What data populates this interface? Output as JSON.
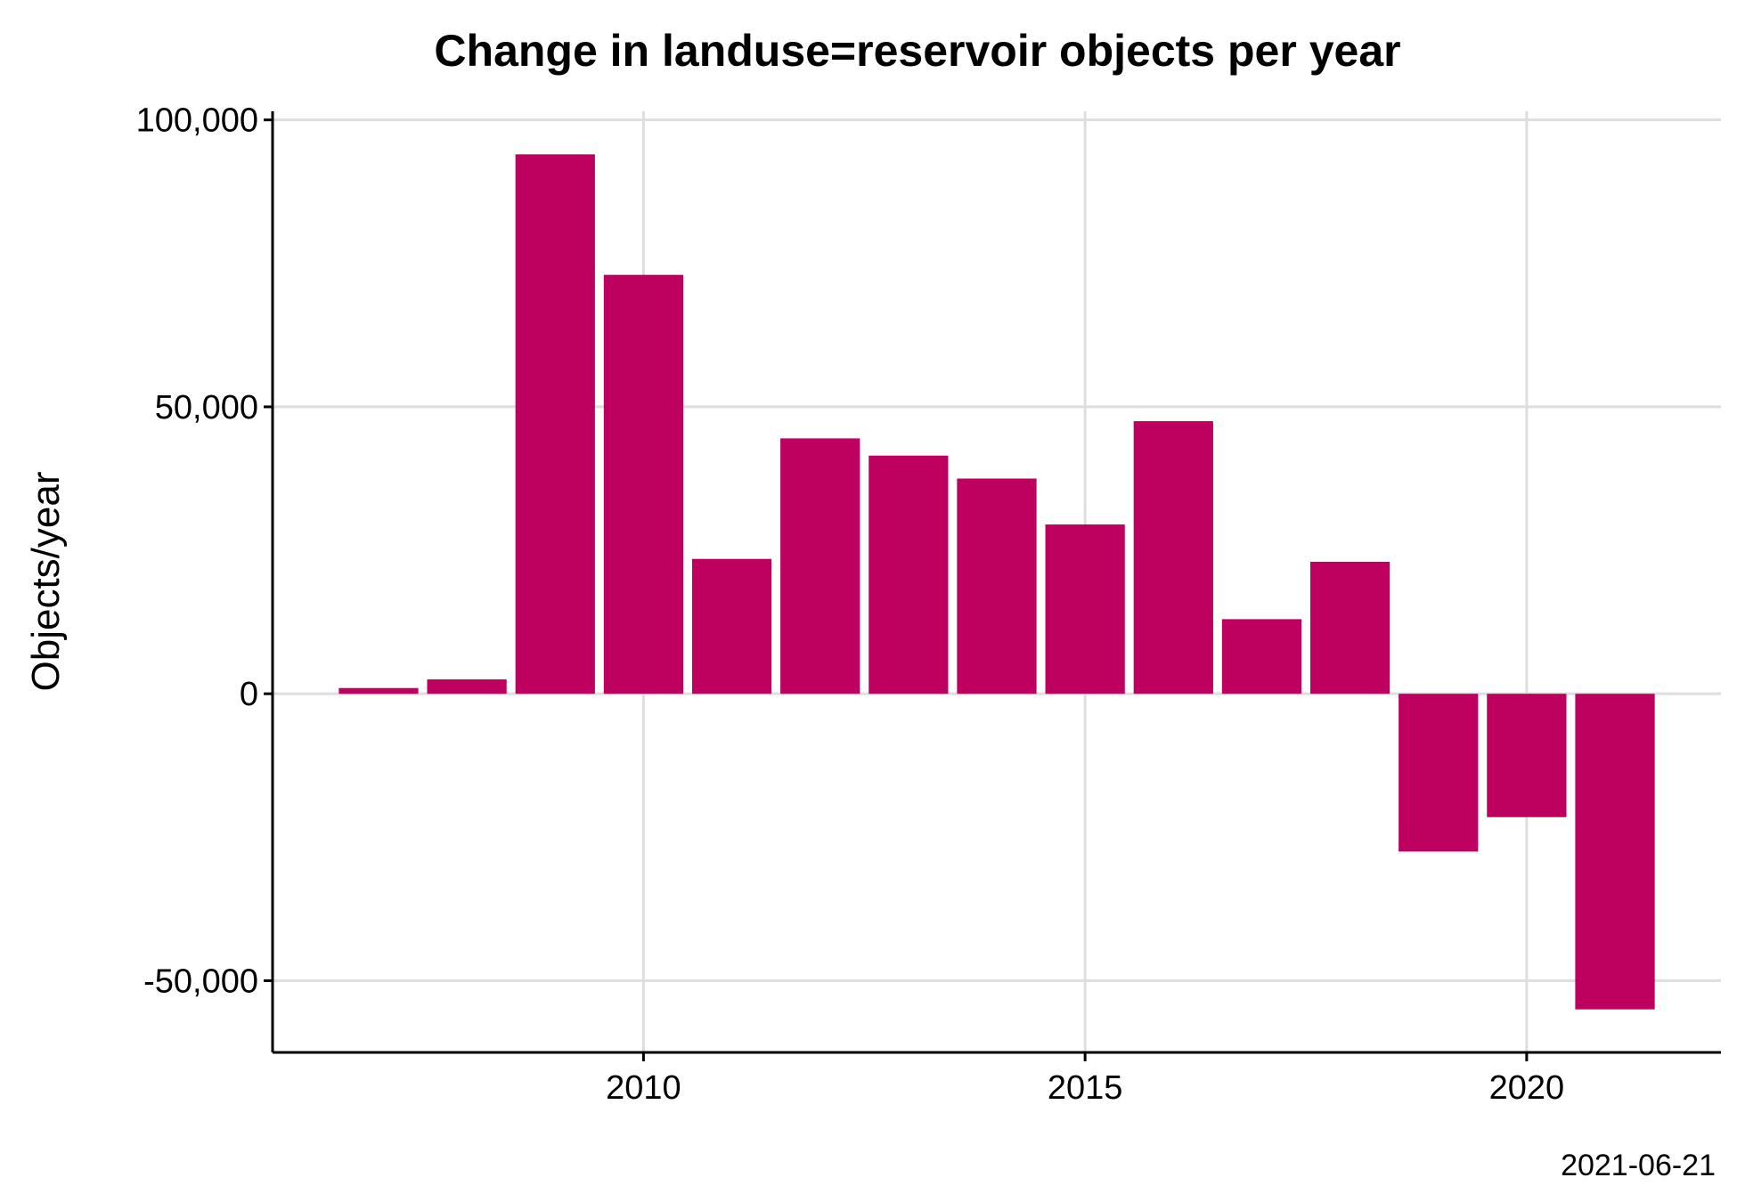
{
  "chart_data": {
    "type": "bar",
    "title": "Change in landuse=reservoir objects per year",
    "xlabel": "",
    "ylabel": "Objects/year",
    "caption": "2021-06-21",
    "x": [
      2007,
      2008,
      2009,
      2010,
      2011,
      2012,
      2013,
      2014,
      2015,
      2016,
      2017,
      2018,
      2019,
      2020,
      2021
    ],
    "values": [
      1000,
      2500,
      94000,
      73000,
      23500,
      44500,
      41500,
      37500,
      29500,
      47500,
      13000,
      23000,
      -27500,
      -21500,
      -55000
    ],
    "xlim": [
      2005.8,
      2022.2
    ],
    "ylim": [
      -62500,
      101500
    ],
    "x_ticks": [
      2010,
      2015,
      2020
    ],
    "x_tick_labels": [
      "2010",
      "2015",
      "2020"
    ],
    "y_ticks": [
      -50000,
      0,
      50000,
      100000
    ],
    "y_tick_labels": [
      "-50,000",
      "0",
      "50,000",
      "100,000"
    ],
    "grid": true,
    "colors": {
      "bar": "#be005e",
      "grid": "#dedede",
      "axis": "#000000"
    }
  }
}
